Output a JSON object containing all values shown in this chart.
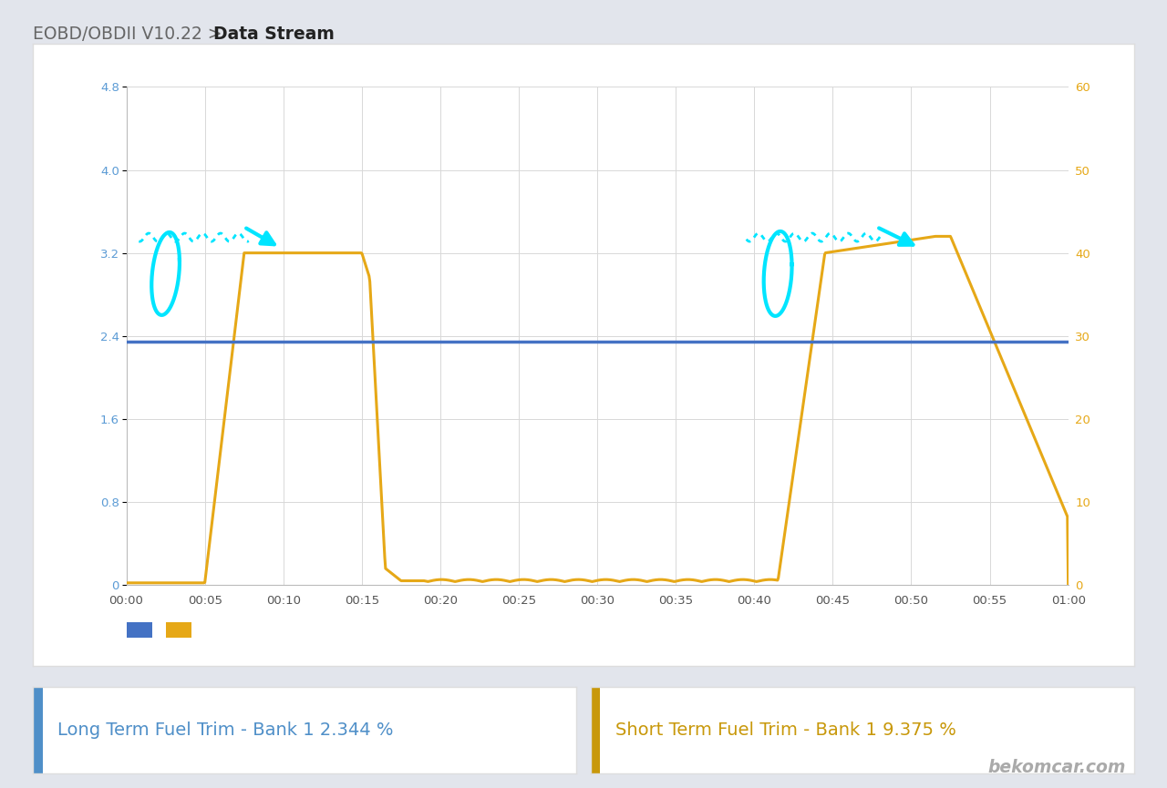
{
  "title_plain": "EOBD/OBDII V10.22 > ",
  "title_bold": "Data Stream",
  "bg_outer": "#e2e5ec",
  "bg_chart_panel": "#ffffff",
  "left_axis_color": "#5b9bd5",
  "right_axis_color": "#e6a817",
  "left_yticks": [
    0,
    0.8,
    1.6,
    2.4,
    3.2,
    4.0,
    4.8
  ],
  "right_yticks": [
    0,
    10,
    20,
    30,
    40,
    50,
    60
  ],
  "ylim_left": [
    0,
    4.8
  ],
  "ylim_right": [
    0,
    60
  ],
  "x_ticks_labels": [
    "00:00",
    "00:05",
    "00:10",
    "00:15",
    "00:20",
    "00:25",
    "00:30",
    "00:35",
    "00:40",
    "00:45",
    "00:50",
    "00:55",
    "01:00"
  ],
  "blue_line_color": "#4472c4",
  "yellow_line_color": "#e6a817",
  "footer_blue_label": "Long Term Fuel Trim - Bank 1 2.344 %",
  "footer_yellow_label": "Short Term Fuel Trim - Bank 1 9.375 %",
  "footer_blue_color": "#4f8fc8",
  "footer_yellow_color": "#c8980a",
  "annotation_color": "#00e5ff",
  "watermark": "bekomcar.com",
  "ltft_value": 2.344
}
